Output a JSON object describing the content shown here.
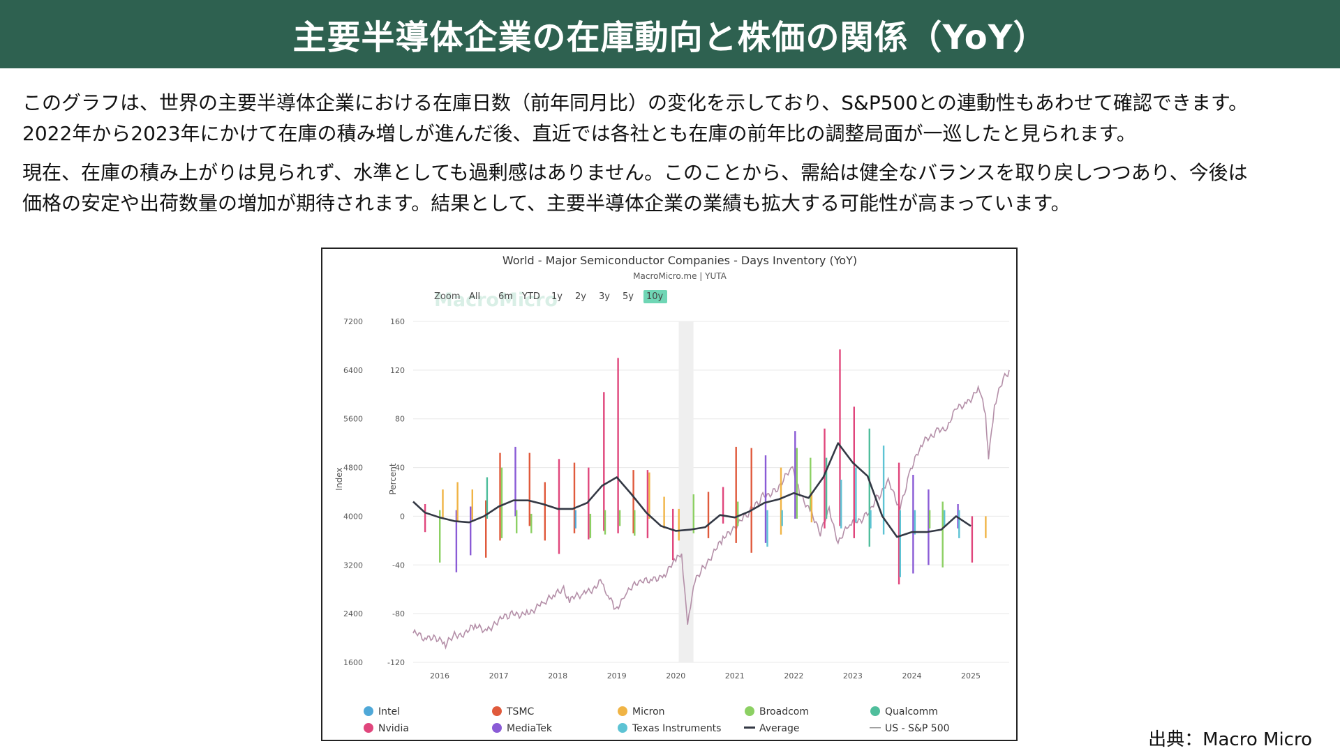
{
  "header": {
    "title": "主要半導体企業の在庫動向と株価の関係（YoY）"
  },
  "description": {
    "p1_l1": "このグラフは、世界の主要半導体企業における在庫日数（前年同月比）の変化を示しており、S&P500との連動性もあわせて確認できます。",
    "p1_l2": "2022年から2023年にかけて在庫の積み増しが進んだ後、直近では各社とも在庫の前年比の調整局面が一巡したと見られます。",
    "p2_l1": "現在、在庫の積み上がりは見られず、水準としても過剰感はありません。このことから、需給は健全なバランスを取り戻しつつあり、今後は",
    "p2_l2": "価格の安定や出荷数量の増加が期待されます。結果として、主要半導体企業の業績も拡大する可能性が高まっています。"
  },
  "source": "出典：Macro Micro",
  "chart_data": {
    "type": "bar",
    "title": "World - Major Semiconductor Companies - Days Inventory (YoY)",
    "subtitle": "MacroMicro.me | YUTA",
    "watermark": "MacroMicro",
    "zoom": {
      "label": "Zoom",
      "options": [
        "All",
        "6m",
        "YTD",
        "1y",
        "2y",
        "3y",
        "5y",
        "10y"
      ],
      "selected": "10y"
    },
    "y_left": {
      "label": "Index",
      "ticks": [
        7200,
        6400,
        5600,
        4800,
        4000,
        3200,
        2400,
        1600
      ],
      "range": [
        1600,
        7200
      ]
    },
    "y_right": {
      "label": "Percent",
      "ticks": [
        160,
        120,
        80,
        40,
        0,
        -40,
        -80,
        -120
      ],
      "range": [
        -120,
        160
      ]
    },
    "x_range": [
      2015.55,
      2025.65
    ],
    "x_ticks": [
      "2016",
      "2017",
      "2018",
      "2019",
      "2020",
      "2021",
      "2022",
      "2023",
      "2024",
      "2025"
    ],
    "recession_band": [
      2020.05,
      2020.3
    ],
    "legend": [
      "Intel",
      "TSMC",
      "Micron",
      "Broadcom",
      "Qualcomm",
      "Nvidia",
      "MediaTek",
      "Texas Instruments",
      "Average",
      "US - S&P 500"
    ],
    "colors": {
      "Intel": "#4fa8d8",
      "TSMC": "#e05a3c",
      "Micron": "#f0b445",
      "Broadcom": "#8cd063",
      "Qualcomm": "#4fbe9c",
      "Nvidia": "#e0467c",
      "MediaTek": "#8a5bd6",
      "Texas Instruments": "#5dc3d4",
      "Average": "#333844",
      "US - S&P 500": "#b48fa8"
    },
    "bars": [
      {
        "x": 2015.75,
        "series": "Nvidia",
        "lo": -13,
        "hi": 10
      },
      {
        "x": 2016.0,
        "series": "Broadcom",
        "lo": -38,
        "hi": 5
      },
      {
        "x": 2016.05,
        "series": "Micron",
        "lo": -2,
        "hi": 22
      },
      {
        "x": 2016.28,
        "series": "MediaTek",
        "lo": -46,
        "hi": 5
      },
      {
        "x": 2016.3,
        "series": "Micron",
        "lo": -5,
        "hi": 28
      },
      {
        "x": 2016.52,
        "series": "MediaTek",
        "lo": -32,
        "hi": 8
      },
      {
        "x": 2016.55,
        "series": "Micron",
        "lo": -3,
        "hi": 22
      },
      {
        "x": 2016.78,
        "series": "TSMC",
        "lo": -34,
        "hi": 13
      },
      {
        "x": 2016.8,
        "series": "Qualcomm",
        "lo": -2,
        "hi": 32
      },
      {
        "x": 2017.02,
        "series": "TSMC",
        "lo": -20,
        "hi": 52
      },
      {
        "x": 2017.05,
        "series": "Broadcom",
        "lo": -18,
        "hi": 40
      },
      {
        "x": 2017.28,
        "series": "MediaTek",
        "lo": 0,
        "hi": 57
      },
      {
        "x": 2017.3,
        "series": "Broadcom",
        "lo": -14,
        "hi": 5
      },
      {
        "x": 2017.52,
        "series": "TSMC",
        "lo": -8,
        "hi": 52
      },
      {
        "x": 2017.55,
        "series": "Broadcom",
        "lo": -14,
        "hi": 2
      },
      {
        "x": 2017.78,
        "series": "TSMC",
        "lo": -20,
        "hi": 28
      },
      {
        "x": 2018.02,
        "series": "Nvidia",
        "lo": -31,
        "hi": 47
      },
      {
        "x": 2018.28,
        "series": "TSMC",
        "lo": -14,
        "hi": 44
      },
      {
        "x": 2018.3,
        "series": "Intel",
        "lo": -10,
        "hi": 5
      },
      {
        "x": 2018.52,
        "series": "Nvidia",
        "lo": -19,
        "hi": 40
      },
      {
        "x": 2018.55,
        "series": "Broadcom",
        "lo": -18,
        "hi": 2
      },
      {
        "x": 2018.78,
        "series": "Nvidia",
        "lo": -12,
        "hi": 102
      },
      {
        "x": 2018.8,
        "series": "Broadcom",
        "lo": -15,
        "hi": 5
      },
      {
        "x": 2019.02,
        "series": "Nvidia",
        "lo": -14,
        "hi": 130
      },
      {
        "x": 2019.05,
        "series": "Broadcom",
        "lo": -8,
        "hi": 5
      },
      {
        "x": 2019.28,
        "series": "TSMC",
        "lo": -14,
        "hi": 38
      },
      {
        "x": 2019.3,
        "series": "Broadcom",
        "lo": -16,
        "hi": 5
      },
      {
        "x": 2019.52,
        "series": "Nvidia",
        "lo": -18,
        "hi": 38
      },
      {
        "x": 2019.55,
        "series": "Micron",
        "lo": -2,
        "hi": 36
      },
      {
        "x": 2019.8,
        "series": "Micron",
        "lo": -10,
        "hi": 16
      },
      {
        "x": 2019.95,
        "series": "Nvidia",
        "lo": -36,
        "hi": 6
      },
      {
        "x": 2020.05,
        "series": "Micron",
        "lo": -20,
        "hi": 6
      },
      {
        "x": 2020.3,
        "series": "Broadcom",
        "lo": -14,
        "hi": 18
      },
      {
        "x": 2020.55,
        "series": "TSMC",
        "lo": -18,
        "hi": 20
      },
      {
        "x": 2020.8,
        "series": "Nvidia",
        "lo": -6,
        "hi": 24
      },
      {
        "x": 2021.02,
        "series": "TSMC",
        "lo": -22,
        "hi": 57
      },
      {
        "x": 2021.05,
        "series": "Broadcom",
        "lo": -8,
        "hi": 12
      },
      {
        "x": 2021.28,
        "series": "TSMC",
        "lo": -30,
        "hi": 56
      },
      {
        "x": 2021.52,
        "series": "MediaTek",
        "lo": -22,
        "hi": 50
      },
      {
        "x": 2021.55,
        "series": "Texas Instruments",
        "lo": -25,
        "hi": 5
      },
      {
        "x": 2021.78,
        "series": "Micron",
        "lo": -15,
        "hi": 40
      },
      {
        "x": 2021.8,
        "series": "Texas Instruments",
        "lo": -8,
        "hi": 5
      },
      {
        "x": 2022.02,
        "series": "MediaTek",
        "lo": -2,
        "hi": 70
      },
      {
        "x": 2022.05,
        "series": "Broadcom",
        "lo": -2,
        "hi": 56
      },
      {
        "x": 2022.28,
        "series": "Broadcom",
        "lo": 5,
        "hi": 48
      },
      {
        "x": 2022.3,
        "series": "Micron",
        "lo": -5,
        "hi": 20
      },
      {
        "x": 2022.52,
        "series": "Nvidia",
        "lo": -10,
        "hi": 72
      },
      {
        "x": 2022.55,
        "series": "Qualcomm",
        "lo": -2,
        "hi": 48
      },
      {
        "x": 2022.78,
        "series": "Nvidia",
        "lo": -8,
        "hi": 137
      },
      {
        "x": 2022.8,
        "series": "Texas Instruments",
        "lo": -10,
        "hi": 30
      },
      {
        "x": 2023.02,
        "series": "Nvidia",
        "lo": -18,
        "hi": 90
      },
      {
        "x": 2023.05,
        "series": "Texas Instruments",
        "lo": -5,
        "hi": 40
      },
      {
        "x": 2023.28,
        "series": "Qualcomm",
        "lo": -25,
        "hi": 72
      },
      {
        "x": 2023.3,
        "series": "Texas Instruments",
        "lo": -10,
        "hi": 5
      },
      {
        "x": 2023.52,
        "series": "Texas Instruments",
        "lo": -15,
        "hi": 58
      },
      {
        "x": 2023.78,
        "series": "Nvidia",
        "lo": -56,
        "hi": 44
      },
      {
        "x": 2023.8,
        "series": "Texas Instruments",
        "lo": -50,
        "hi": 5
      },
      {
        "x": 2024.02,
        "series": "MediaTek",
        "lo": -47,
        "hi": 34
      },
      {
        "x": 2024.05,
        "series": "Texas Instruments",
        "lo": -15,
        "hi": 5
      },
      {
        "x": 2024.28,
        "series": "MediaTek",
        "lo": -40,
        "hi": 22
      },
      {
        "x": 2024.3,
        "series": "Broadcom",
        "lo": -10,
        "hi": 5
      },
      {
        "x": 2024.52,
        "series": "Broadcom",
        "lo": -42,
        "hi": 12
      },
      {
        "x": 2024.55,
        "series": "Texas Instruments",
        "lo": -8,
        "hi": 5
      },
      {
        "x": 2024.78,
        "series": "MediaTek",
        "lo": -10,
        "hi": 10
      },
      {
        "x": 2024.8,
        "series": "Texas Instruments",
        "lo": -18,
        "hi": 5
      },
      {
        "x": 2025.02,
        "series": "Nvidia",
        "lo": -38,
        "hi": 0
      },
      {
        "x": 2025.25,
        "series": "Micron",
        "lo": -18,
        "hi": 0
      }
    ],
    "average": [
      [
        2015.55,
        12
      ],
      [
        2015.75,
        3
      ],
      [
        2016.0,
        -1
      ],
      [
        2016.25,
        -4
      ],
      [
        2016.5,
        -5
      ],
      [
        2016.75,
        0
      ],
      [
        2017.0,
        8
      ],
      [
        2017.25,
        13
      ],
      [
        2017.5,
        13
      ],
      [
        2017.75,
        10
      ],
      [
        2018.0,
        6
      ],
      [
        2018.25,
        6
      ],
      [
        2018.5,
        11
      ],
      [
        2018.75,
        25
      ],
      [
        2019.0,
        32
      ],
      [
        2019.25,
        18
      ],
      [
        2019.5,
        3
      ],
      [
        2019.75,
        -8
      ],
      [
        2020.0,
        -12
      ],
      [
        2020.25,
        -11
      ],
      [
        2020.5,
        -9
      ],
      [
        2020.75,
        1
      ],
      [
        2021.0,
        -1
      ],
      [
        2021.25,
        4
      ],
      [
        2021.5,
        11
      ],
      [
        2021.75,
        14
      ],
      [
        2022.0,
        19
      ],
      [
        2022.25,
        15
      ],
      [
        2022.5,
        32
      ],
      [
        2022.75,
        60
      ],
      [
        2023.0,
        44
      ],
      [
        2023.25,
        33
      ],
      [
        2023.5,
        0
      ],
      [
        2023.75,
        -17
      ],
      [
        2024.0,
        -13
      ],
      [
        2024.25,
        -13
      ],
      [
        2024.5,
        -11
      ],
      [
        2024.75,
        0
      ],
      [
        2025.0,
        -8
      ]
    ],
    "sp500": [
      [
        2015.55,
        2080
      ],
      [
        2015.75,
        1990
      ],
      [
        2015.9,
        2050
      ],
      [
        2016.1,
        1870
      ],
      [
        2016.25,
        2040
      ],
      [
        2016.4,
        2090
      ],
      [
        2016.6,
        2170
      ],
      [
        2016.8,
        2130
      ],
      [
        2016.95,
        2270
      ],
      [
        2017.2,
        2370
      ],
      [
        2017.5,
        2430
      ],
      [
        2017.75,
        2560
      ],
      [
        2017.95,
        2690
      ],
      [
        2018.1,
        2830
      ],
      [
        2018.2,
        2620
      ],
      [
        2018.45,
        2730
      ],
      [
        2018.75,
        2920
      ],
      [
        2018.85,
        2720
      ],
      [
        2018.98,
        2420
      ],
      [
        2019.15,
        2780
      ],
      [
        2019.4,
        2900
      ],
      [
        2019.6,
        2960
      ],
      [
        2019.8,
        3050
      ],
      [
        2020.0,
        3250
      ],
      [
        2020.1,
        3380
      ],
      [
        2020.2,
        2230
      ],
      [
        2020.3,
        2850
      ],
      [
        2020.45,
        3150
      ],
      [
        2020.6,
        3350
      ],
      [
        2020.8,
        3600
      ],
      [
        2020.95,
        3800
      ],
      [
        2021.2,
        4000
      ],
      [
        2021.45,
        4300
      ],
      [
        2021.7,
        4450
      ],
      [
        2021.98,
        4780
      ],
      [
        2022.1,
        4350
      ],
      [
        2022.3,
        4100
      ],
      [
        2022.45,
        3700
      ],
      [
        2022.6,
        4100
      ],
      [
        2022.75,
        3600
      ],
      [
        2022.95,
        3850
      ],
      [
        2023.2,
        4000
      ],
      [
        2023.45,
        4350
      ],
      [
        2023.6,
        4550
      ],
      [
        2023.8,
        4150
      ],
      [
        2023.98,
        4780
      ],
      [
        2024.2,
        5200
      ],
      [
        2024.45,
        5450
      ],
      [
        2024.6,
        5450
      ],
      [
        2024.75,
        5750
      ],
      [
        2024.95,
        5900
      ],
      [
        2025.15,
        6100
      ],
      [
        2025.25,
        5600
      ],
      [
        2025.3,
        5000
      ],
      [
        2025.4,
        5800
      ],
      [
        2025.55,
        6250
      ],
      [
        2025.65,
        6400
      ]
    ]
  }
}
